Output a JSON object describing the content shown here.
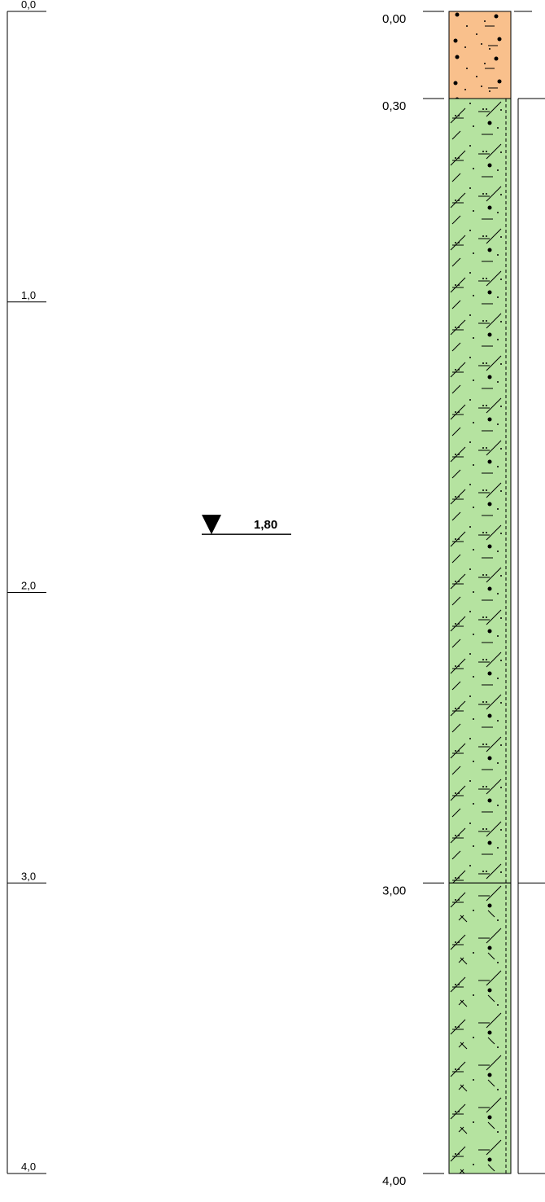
{
  "depth_scale": {
    "ticks": [
      {
        "value": 0,
        "label": "0,0"
      },
      {
        "value": 1,
        "label": "1,0"
      },
      {
        "value": 2,
        "label": "2,0"
      },
      {
        "value": 3,
        "label": "3,0"
      },
      {
        "value": 4,
        "label": "4,0"
      }
    ]
  },
  "boundaries": [
    {
      "value": 0,
      "label": "0,00"
    },
    {
      "value": 0.3,
      "label": "0,30"
    },
    {
      "value": 3,
      "label": "3,00"
    },
    {
      "value": 4,
      "label": "4,00"
    }
  ],
  "layers": [
    {
      "color": "#f9c08c"
    },
    {
      "color": "#b5e3a0"
    },
    {
      "color": "#b5e3a0"
    }
  ],
  "water_level": {
    "value": 1.8,
    "label": "1,80"
  }
}
